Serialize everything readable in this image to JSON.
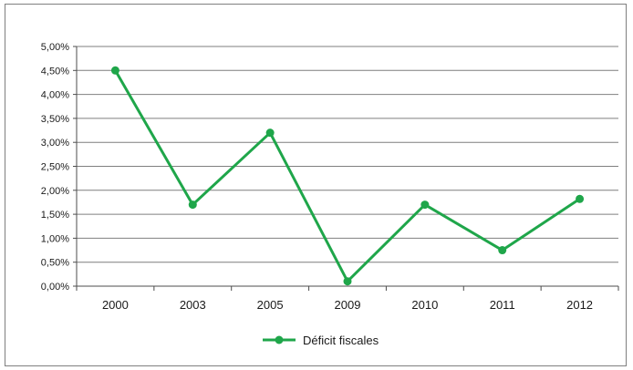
{
  "chart_data": {
    "type": "line",
    "categories": [
      "2000",
      "2003",
      "2005",
      "2009",
      "2010",
      "2011",
      "2012"
    ],
    "series": [
      {
        "name": "Déficit fiscales",
        "values": [
          4.5,
          1.7,
          3.2,
          0.1,
          1.7,
          0.75,
          1.82
        ]
      }
    ],
    "y_ticks": [
      "0,00%",
      "0,50%",
      "1,00%",
      "1,50%",
      "2,00%",
      "2,50%",
      "3,00%",
      "3,50%",
      "4,00%",
      "4,50%",
      "5,00%"
    ],
    "ylim": [
      0,
      5
    ],
    "grid": true,
    "legend_position": "bottom-center",
    "colors": {
      "series": "#1fa64a",
      "grid": "#7f7f7f",
      "axis": "#4d4d4d",
      "frame": "#7f7f7f"
    },
    "title": "",
    "xlabel": "",
    "ylabel": ""
  }
}
